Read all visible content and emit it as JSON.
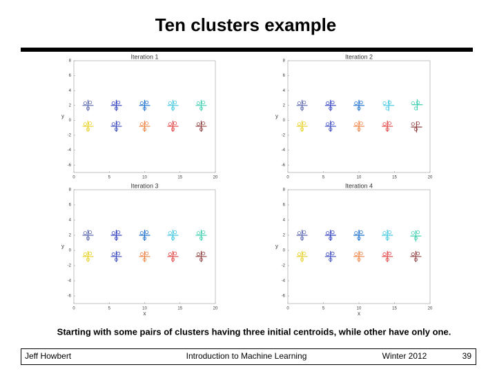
{
  "title": "Ten clusters example",
  "chart_data": [
    {
      "type": "scatter",
      "title": "Iteration 1",
      "ylabel": "y",
      "xlim": [
        0,
        20
      ],
      "ylim": [
        -7,
        8
      ],
      "xticks": [
        0,
        5,
        10,
        15,
        20
      ],
      "yticks": [
        8,
        6,
        4,
        2,
        0,
        -2,
        -4,
        -6
      ],
      "series": [
        {
          "color": "#5a66b0",
          "x": [
            1.6,
            2.3,
            2.0
          ],
          "y": [
            2.3,
            2.4,
            1.6
          ]
        },
        {
          "color": "#3040c0",
          "x": [
            5.6,
            6.3,
            6.0
          ],
          "y": [
            2.3,
            2.4,
            1.6
          ]
        },
        {
          "color": "#1a6fd0",
          "x": [
            9.6,
            10.3,
            10.0
          ],
          "y": [
            2.3,
            2.4,
            1.6
          ]
        },
        {
          "color": "#40c8e0",
          "x": [
            13.6,
            14.3,
            14.0
          ],
          "y": [
            2.3,
            2.4,
            1.6
          ]
        },
        {
          "color": "#40d0b0",
          "x": [
            17.6,
            18.3,
            18.0
          ],
          "y": [
            2.3,
            2.4,
            1.6
          ]
        },
        {
          "color": "#e8d020",
          "x": [
            1.6,
            2.3,
            2.0
          ],
          "y": [
            -0.5,
            -0.4,
            -1.2
          ]
        },
        {
          "color": "#3848c0",
          "x": [
            5.6,
            6.3,
            6.0
          ],
          "y": [
            -0.5,
            -0.4,
            -1.2
          ]
        },
        {
          "color": "#f08040",
          "x": [
            9.6,
            10.3,
            10.0
          ],
          "y": [
            -0.5,
            -0.4,
            -1.2
          ]
        },
        {
          "color": "#e04040",
          "x": [
            13.6,
            14.3,
            14.0
          ],
          "y": [
            -0.5,
            -0.4,
            -1.2
          ]
        },
        {
          "color": "#904040",
          "x": [
            17.6,
            18.3,
            18.0
          ],
          "y": [
            -0.5,
            -0.4,
            -1.2
          ]
        }
      ],
      "centroids": {
        "x": [
          2,
          6,
          10,
          14,
          18,
          2,
          6,
          10,
          14,
          18
        ],
        "y": [
          2,
          2,
          2,
          2,
          2,
          -0.8,
          -0.8,
          -0.8,
          -0.8,
          -0.8
        ],
        "colors": [
          "#5a66b0",
          "#3040c0",
          "#1a6fd0",
          "#40c8e0",
          "#40d0b0",
          "#e8d020",
          "#3848c0",
          "#f08040",
          "#e04040",
          "#904040"
        ]
      }
    },
    {
      "type": "scatter",
      "title": "Iteration 2",
      "ylabel": "y",
      "xlim": [
        0,
        20
      ],
      "ylim": [
        -7,
        8
      ],
      "xticks": [
        0,
        5,
        10,
        15,
        20
      ],
      "yticks": [
        8,
        6,
        4,
        2,
        0,
        -2,
        -4,
        -6
      ],
      "series": [
        {
          "color": "#5a66b0",
          "x": [
            1.6,
            2.3,
            2.0
          ],
          "y": [
            2.3,
            2.4,
            1.6
          ]
        },
        {
          "color": "#3040c0",
          "x": [
            5.6,
            6.3,
            6.0
          ],
          "y": [
            2.3,
            2.4,
            1.6
          ]
        },
        {
          "color": "#1a6fd0",
          "x": [
            9.6,
            10.3,
            10.0
          ],
          "y": [
            2.3,
            2.4,
            1.6
          ]
        },
        {
          "color": "#40c8e0",
          "x": [
            13.6,
            14.3,
            14.0
          ],
          "y": [
            2.3,
            2.4,
            1.6
          ]
        },
        {
          "color": "#40d0b0",
          "x": [
            17.6,
            18.3,
            18.0
          ],
          "y": [
            2.3,
            2.4,
            1.6
          ]
        },
        {
          "color": "#e8d020",
          "x": [
            1.6,
            2.3,
            2.0
          ],
          "y": [
            -0.5,
            -0.4,
            -1.2
          ]
        },
        {
          "color": "#3848c0",
          "x": [
            5.6,
            6.3,
            6.0
          ],
          "y": [
            -0.5,
            -0.4,
            -1.2
          ]
        },
        {
          "color": "#f08040",
          "x": [
            9.6,
            10.3,
            10.0
          ],
          "y": [
            -0.5,
            -0.4,
            -1.2
          ]
        },
        {
          "color": "#e04040",
          "x": [
            13.6,
            14.3,
            14.0
          ],
          "y": [
            -0.5,
            -0.4,
            -1.2
          ]
        },
        {
          "color": "#904040",
          "x": [
            17.6,
            18.3,
            18.0
          ],
          "y": [
            -0.5,
            -0.4,
            -1.2
          ]
        }
      ],
      "centroids": {
        "x": [
          2,
          6,
          10,
          14.2,
          18.2,
          2,
          6,
          10,
          14,
          18.1
        ],
        "y": [
          2,
          2,
          2,
          2,
          2.1,
          -0.8,
          -0.8,
          -0.8,
          -0.8,
          -0.9
        ],
        "colors": [
          "#5a66b0",
          "#3040c0",
          "#1a6fd0",
          "#40c8e0",
          "#40d0b0",
          "#e8d020",
          "#3848c0",
          "#f08040",
          "#e04040",
          "#904040"
        ]
      }
    },
    {
      "type": "scatter",
      "title": "Iteration 3",
      "ylabel": "y",
      "xlabel": "x",
      "xlim": [
        0,
        20
      ],
      "ylim": [
        -7,
        8
      ],
      "xticks": [
        0,
        5,
        10,
        15,
        20
      ],
      "yticks": [
        8,
        6,
        4,
        2,
        0,
        -2,
        -4,
        -6
      ],
      "series": [
        {
          "color": "#5a66b0",
          "x": [
            1.6,
            2.3,
            2.0
          ],
          "y": [
            2.3,
            2.4,
            1.6
          ]
        },
        {
          "color": "#3040c0",
          "x": [
            5.6,
            6.3,
            6.0
          ],
          "y": [
            2.3,
            2.4,
            1.6
          ]
        },
        {
          "color": "#1a6fd0",
          "x": [
            9.6,
            10.3,
            10.0
          ],
          "y": [
            2.3,
            2.4,
            1.6
          ]
        },
        {
          "color": "#40c8e0",
          "x": [
            13.6,
            14.3,
            14.0
          ],
          "y": [
            2.3,
            2.4,
            1.6
          ]
        },
        {
          "color": "#40d0b0",
          "x": [
            17.6,
            18.3,
            18.0
          ],
          "y": [
            2.3,
            2.4,
            1.6
          ]
        },
        {
          "color": "#e8d020",
          "x": [
            1.6,
            2.3,
            2.0
          ],
          "y": [
            -0.5,
            -0.4,
            -1.2
          ]
        },
        {
          "color": "#3848c0",
          "x": [
            5.6,
            6.3,
            6.0
          ],
          "y": [
            -0.5,
            -0.4,
            -1.2
          ]
        },
        {
          "color": "#f08040",
          "x": [
            9.6,
            10.3,
            10.0
          ],
          "y": [
            -0.5,
            -0.4,
            -1.2
          ]
        },
        {
          "color": "#e04040",
          "x": [
            13.6,
            14.3,
            14.0
          ],
          "y": [
            -0.5,
            -0.4,
            -1.2
          ]
        },
        {
          "color": "#904040",
          "x": [
            17.6,
            18.3,
            18.0
          ],
          "y": [
            -0.5,
            -0.4,
            -1.2
          ]
        }
      ],
      "centroids": {
        "x": [
          2,
          6,
          10,
          14,
          18,
          2,
          6,
          10,
          14,
          18
        ],
        "y": [
          2,
          2,
          2,
          2,
          2,
          -0.8,
          -0.8,
          -0.8,
          -0.8,
          -0.8
        ],
        "colors": [
          "#5a66b0",
          "#3040c0",
          "#1a6fd0",
          "#40c8e0",
          "#40d0b0",
          "#e8d020",
          "#3848c0",
          "#f08040",
          "#e04040",
          "#904040"
        ]
      }
    },
    {
      "type": "scatter",
      "title": "Iteration 4",
      "ylabel": "y",
      "xlabel": "x",
      "xlim": [
        0,
        20
      ],
      "ylim": [
        -7,
        8
      ],
      "xticks": [
        0,
        5,
        10,
        15,
        20
      ],
      "yticks": [
        8,
        6,
        4,
        2,
        0,
        -2,
        -4,
        -6
      ],
      "series": [
        {
          "color": "#5a66b0",
          "x": [
            1.6,
            2.3,
            2.0
          ],
          "y": [
            2.3,
            2.4,
            1.6
          ]
        },
        {
          "color": "#3040c0",
          "x": [
            5.6,
            6.3,
            6.0
          ],
          "y": [
            2.3,
            2.4,
            1.6
          ]
        },
        {
          "color": "#1a6fd0",
          "x": [
            9.6,
            10.3,
            10.0
          ],
          "y": [
            2.3,
            2.4,
            1.6
          ]
        },
        {
          "color": "#40c8e0",
          "x": [
            13.6,
            14.3,
            14.0
          ],
          "y": [
            2.3,
            2.4,
            1.6
          ]
        },
        {
          "color": "#40d0b0",
          "x": [
            17.6,
            18.3,
            18.0
          ],
          "y": [
            2.3,
            2.4,
            1.6
          ]
        },
        {
          "color": "#e8d020",
          "x": [
            1.6,
            2.3,
            2.0
          ],
          "y": [
            -0.5,
            -0.4,
            -1.2
          ]
        },
        {
          "color": "#3848c0",
          "x": [
            5.6,
            6.3,
            6.0
          ],
          "y": [
            -0.5,
            -0.4,
            -1.2
          ]
        },
        {
          "color": "#f08040",
          "x": [
            9.6,
            10.3,
            10.0
          ],
          "y": [
            -0.5,
            -0.4,
            -1.2
          ]
        },
        {
          "color": "#e04040",
          "x": [
            13.6,
            14.3,
            14.0
          ],
          "y": [
            -0.5,
            -0.4,
            -1.2
          ]
        },
        {
          "color": "#904040",
          "x": [
            17.6,
            18.3,
            18.0
          ],
          "y": [
            -0.5,
            -0.4,
            -1.2
          ]
        }
      ],
      "centroids": {
        "x": [
          2,
          6,
          10,
          14,
          18,
          2,
          6,
          10,
          14,
          18
        ],
        "y": [
          2,
          2,
          2,
          2,
          1.9,
          -0.8,
          -0.8,
          -0.8,
          -0.8,
          -0.8
        ],
        "colors": [
          "#5a66b0",
          "#3040c0",
          "#1a6fd0",
          "#40c8e0",
          "#40d0b0",
          "#e8d020",
          "#3848c0",
          "#f08040",
          "#e04040",
          "#904040"
        ]
      }
    }
  ],
  "caption": "Starting with some pairs of clusters having three initial centroids, while other have only one.",
  "footer": {
    "author": "Jeff Howbert",
    "course": "Introduction to Machine Learning",
    "term": "Winter 2012",
    "page": 39
  }
}
